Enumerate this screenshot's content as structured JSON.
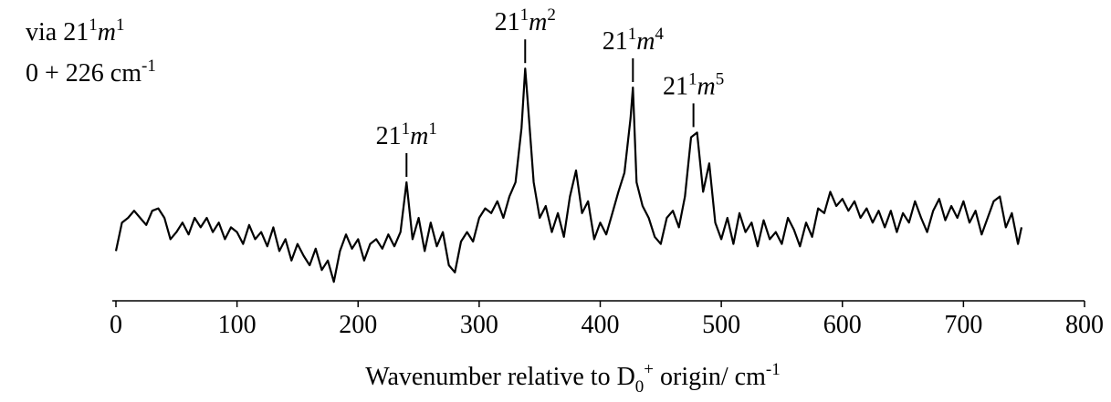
{
  "chart_data": {
    "type": "line",
    "color": "#000000",
    "notes": [
      [
        {
          "text": "via 21"
        },
        {
          "text": "1",
          "style": "sup"
        },
        {
          "text": "m",
          "style": "italic"
        },
        {
          "text": "1",
          "style": "sup"
        }
      ],
      [
        {
          "text": "0 + 226 cm"
        },
        {
          "text": "-1",
          "style": "sup"
        }
      ]
    ],
    "xlabel": [
      {
        "text": "Wavenumber relative to D"
      },
      {
        "text": "0",
        "style": "sub"
      },
      {
        "text": "+",
        "style": "sup"
      },
      {
        "text": " origin/ cm"
      },
      {
        "text": "-1",
        "style": "sup"
      }
    ],
    "annotations": [
      {
        "x": 240,
        "label": [
          {
            "text": "21"
          },
          {
            "text": "1",
            "style": "sup"
          },
          {
            "text": "m",
            "style": "italic"
          },
          {
            "text": "1",
            "style": "sup"
          }
        ]
      },
      {
        "x": 338,
        "label": [
          {
            "text": "21"
          },
          {
            "text": "1",
            "style": "sup"
          },
          {
            "text": "m",
            "style": "italic"
          },
          {
            "text": "2",
            "style": "sup"
          }
        ]
      },
      {
        "x": 427,
        "label": [
          {
            "text": "21"
          },
          {
            "text": "1",
            "style": "sup"
          },
          {
            "text": "m",
            "style": "italic"
          },
          {
            "text": "4",
            "style": "sup"
          }
        ]
      },
      {
        "x": 477,
        "label": [
          {
            "text": "21"
          },
          {
            "text": "1",
            "style": "sup"
          },
          {
            "text": "m",
            "style": "italic"
          },
          {
            "text": "5",
            "style": "sup"
          }
        ]
      }
    ],
    "x": [
      0,
      5,
      10,
      15,
      20,
      25,
      30,
      35,
      40,
      45,
      50,
      55,
      60,
      65,
      70,
      75,
      80,
      85,
      90,
      95,
      100,
      105,
      110,
      115,
      120,
      125,
      130,
      135,
      140,
      145,
      150,
      155,
      160,
      165,
      170,
      175,
      180,
      185,
      190,
      195,
      200,
      205,
      210,
      215,
      220,
      225,
      230,
      235,
      240,
      245,
      250,
      255,
      260,
      265,
      270,
      275,
      280,
      285,
      290,
      295,
      300,
      305,
      310,
      315,
      320,
      325,
      330,
      335,
      338,
      340,
      345,
      350,
      355,
      360,
      365,
      370,
      375,
      380,
      385,
      390,
      395,
      400,
      405,
      410,
      415,
      420,
      425,
      427,
      430,
      435,
      440,
      445,
      450,
      455,
      460,
      465,
      470,
      475,
      480,
      485,
      490,
      495,
      500,
      505,
      510,
      515,
      520,
      525,
      530,
      535,
      540,
      545,
      550,
      555,
      560,
      565,
      570,
      575,
      580,
      585,
      590,
      595,
      600,
      605,
      610,
      615,
      620,
      625,
      630,
      635,
      640,
      645,
      650,
      655,
      660,
      665,
      670,
      675,
      680,
      685,
      690,
      695,
      700,
      705,
      710,
      715,
      720,
      725,
      730,
      735,
      740,
      745,
      748
    ],
    "values": [
      21,
      33,
      35,
      38,
      35,
      32,
      38,
      39,
      35,
      26,
      29,
      33,
      28,
      35,
      31,
      35,
      29,
      33,
      26,
      31,
      29,
      24,
      32,
      26,
      29,
      23,
      31,
      21,
      26,
      17,
      24,
      19,
      15,
      22,
      13,
      17,
      8,
      21,
      28,
      22,
      26,
      17,
      24,
      26,
      22,
      28,
      23,
      29,
      50,
      26,
      35,
      21,
      33,
      23,
      29,
      15,
      12,
      25,
      29,
      25,
      35,
      39,
      37,
      42,
      35,
      44,
      50,
      73,
      98,
      85,
      50,
      35,
      40,
      29,
      37,
      27,
      44,
      55,
      37,
      42,
      26,
      33,
      28,
      37,
      46,
      54,
      77,
      90,
      50,
      40,
      35,
      27,
      24,
      35,
      38,
      31,
      44,
      69,
      71,
      46,
      58,
      33,
      26,
      35,
      24,
      37,
      29,
      33,
      23,
      34,
      26,
      29,
      24,
      35,
      30,
      23,
      33,
      27,
      39,
      37,
      46,
      40,
      43,
      38,
      42,
      35,
      39,
      33,
      38,
      31,
      38,
      29,
      37,
      33,
      42,
      35,
      29,
      38,
      43,
      34,
      40,
      35,
      42,
      33,
      38,
      28,
      35,
      42,
      44,
      31,
      37,
      24,
      31
    ],
    "xlim": [
      0,
      800
    ],
    "xticks": [
      0,
      100,
      200,
      300,
      400,
      500,
      600,
      700,
      800
    ],
    "ylim": [
      0,
      100
    ]
  }
}
